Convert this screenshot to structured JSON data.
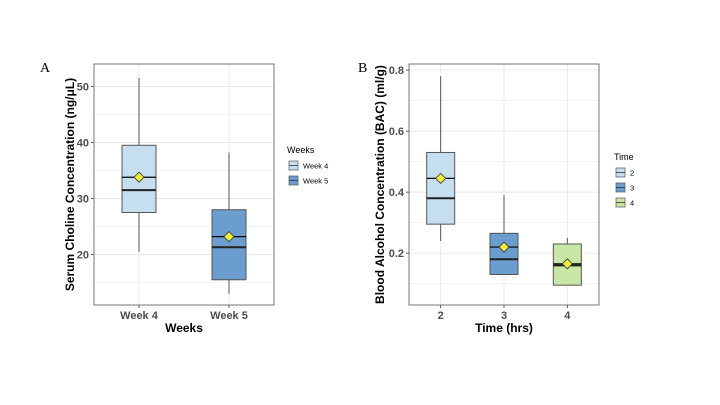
{
  "chart_data": [
    {
      "type": "boxplot",
      "panel_label": "A",
      "xlabel": "Weeks",
      "ylabel": "Serum Choline Concentration (ng/μL)",
      "ylim": [
        11,
        54
      ],
      "yticks": [
        20,
        30,
        40,
        50
      ],
      "grid": true,
      "legend": {
        "title": "Weeks",
        "placement": "right"
      },
      "categories": [
        "Week 4",
        "Week 5"
      ],
      "series": [
        {
          "name": "Week 4",
          "color": "#c6dff0",
          "min": 20.5,
          "q1": 27.5,
          "median": 31.5,
          "q3": 39.5,
          "max": 51.5,
          "mean": 33.8
        },
        {
          "name": "Week 5",
          "color": "#6b9ecf",
          "min": 13.0,
          "q1": 15.5,
          "median": 21.3,
          "q3": 28.0,
          "max": 38.2,
          "mean": 23.2
        }
      ]
    },
    {
      "type": "boxplot",
      "panel_label": "B",
      "xlabel": "Time (hrs)",
      "ylabel": "Blood Alcohol Concentration (BAC) (ml/g)",
      "ylim": [
        0.03,
        0.82
      ],
      "yticks": [
        0.2,
        0.4,
        0.6,
        0.8
      ],
      "grid": true,
      "legend": {
        "title": "Time",
        "placement": "right"
      },
      "categories": [
        "2",
        "3",
        "4"
      ],
      "series": [
        {
          "name": "2",
          "color": "#c6dff0",
          "min": 0.24,
          "q1": 0.295,
          "median": 0.38,
          "q3": 0.53,
          "max": 0.78,
          "mean": 0.445
        },
        {
          "name": "3",
          "color": "#6b9ecf",
          "min": 0.13,
          "q1": 0.13,
          "median": 0.18,
          "q3": 0.265,
          "max": 0.39,
          "mean": 0.22
        },
        {
          "name": "4",
          "color": "#c8e6a6",
          "min": 0.095,
          "q1": 0.095,
          "median": 0.16,
          "q3": 0.23,
          "max": 0.25,
          "mean": 0.165
        }
      ]
    }
  ],
  "colors": {
    "mean_marker": "#f2ee3a",
    "grid": "#e8e8e8",
    "outline": "#555555"
  }
}
